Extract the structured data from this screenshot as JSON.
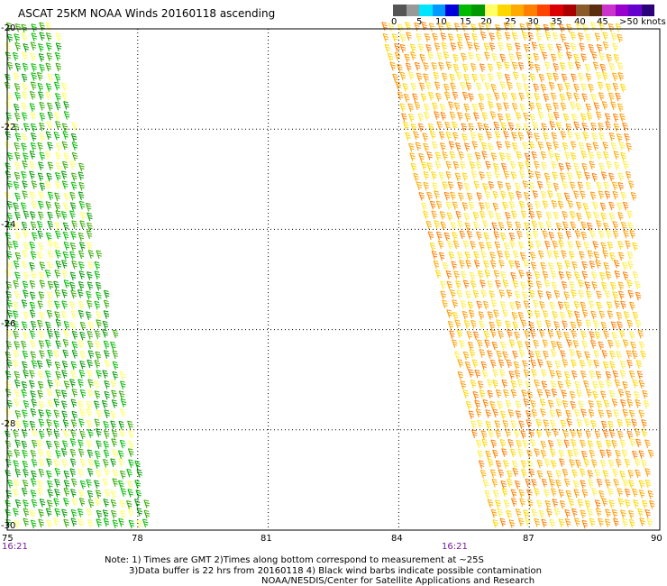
{
  "title": "ASCAT 25KM NOAA Winds 20160118 ascending",
  "legend": {
    "labels": [
      "0",
      "5",
      "10",
      "15",
      "20",
      "25",
      "30",
      "35",
      "40",
      "45",
      ">50 knots"
    ],
    "colors": [
      "#555555",
      "#999999",
      "#00e5ff",
      "#0099ff",
      "#0000dd",
      "#00bb00",
      "#009900",
      "#ffff66",
      "#ffd700",
      "#ffaa00",
      "#ff7f00",
      "#ff4400",
      "#dd0000",
      "#aa0000",
      "#8b5a2b",
      "#5a2e0e",
      "#cc33cc",
      "#9900cc",
      "#6600cc",
      "#2b007a"
    ]
  },
  "axes": {
    "x_ticks": [
      "75",
      "78",
      "81",
      "84",
      "87",
      "90"
    ],
    "y_ticks": [
      "-20",
      "-22",
      "-24",
      "-26",
      "-28",
      "-30"
    ],
    "x_range": [
      75,
      90
    ],
    "y_range": [
      -20,
      -30
    ]
  },
  "times": [
    "16:21",
    "16:21"
  ],
  "note": {
    "line1": "Note: 1) Times are GMT 2)Times along bottom correspond to measurement at ~25S",
    "line2": "3)Data buffer is 22 hrs from 20160118 4) Black wind barbs indicate possible contamination",
    "line3": "NOAA/NESDIS/Center for Satellite Applications and Research"
  },
  "swaths": [
    {
      "name": "west",
      "left_top_lon": 75.0,
      "left_bottom_lon": 75.0,
      "right_top_lon": 76.2,
      "right_bottom_lon": 78.4,
      "palette": [
        "#009900",
        "#00bb00",
        "#33aa00",
        "#ffff66"
      ]
    },
    {
      "name": "east",
      "left_top_lon": 83.6,
      "left_bottom_lon": 86.2,
      "right_top_lon": 89.2,
      "right_bottom_lon": 90.0,
      "palette": [
        "#ffd700",
        "#ffaa00",
        "#ff9900",
        "#ff7f00",
        "#ffee44"
      ]
    }
  ]
}
